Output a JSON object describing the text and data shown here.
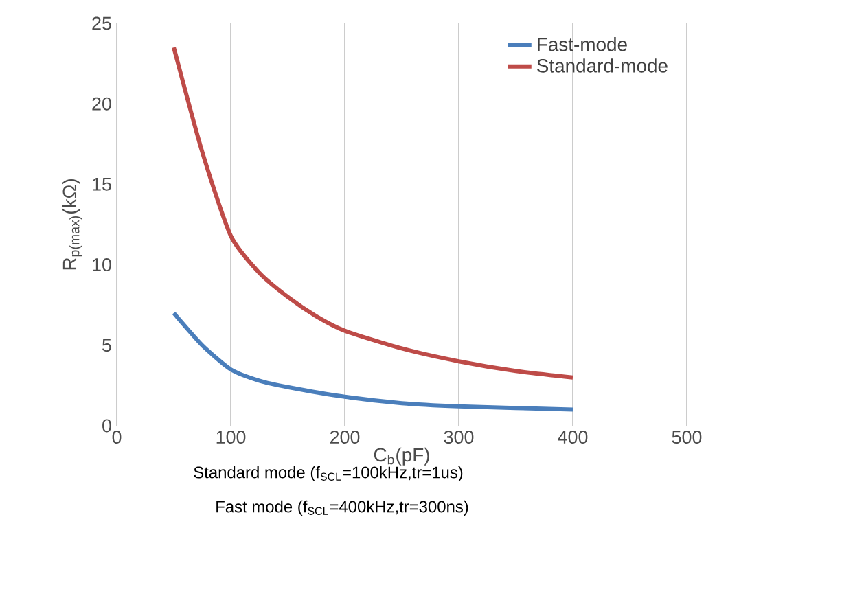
{
  "chart_data": {
    "type": "line",
    "xlabel": "C$_{b}$(pF)",
    "ylabel": "R$_{p(max)}$(kΩ)",
    "xlim": [
      0,
      500
    ],
    "xticks": [
      0,
      100,
      200,
      300,
      400,
      500
    ],
    "ylim": [
      0,
      25
    ],
    "yticks": [
      0,
      5,
      10,
      15,
      20,
      25
    ],
    "grid": "x",
    "legend": "top right",
    "series": [
      {
        "name": "Fast-mode",
        "color": "#4a7ebb",
        "x": [
          50,
          75,
          100,
          125,
          150,
          200,
          250,
          300,
          350,
          400
        ],
        "values": [
          7.0,
          5.0,
          3.5,
          2.8,
          2.4,
          1.8,
          1.4,
          1.2,
          1.1,
          1.0
        ]
      },
      {
        "name": "Standard-mode",
        "color": "#be4b48",
        "x": [
          50,
          75,
          100,
          125,
          150,
          175,
          200,
          250,
          300,
          350,
          400
        ],
        "values": [
          23.5,
          17.0,
          11.8,
          9.5,
          8.0,
          6.8,
          5.9,
          4.8,
          4.0,
          3.4,
          3.0
        ]
      }
    ],
    "annotations": [
      "Standard mode (f$_{SCL}$=100kHz,tr=1us)",
      "Fast mode (f$_{SCL}$=400kHz,tr=300ns)"
    ]
  }
}
